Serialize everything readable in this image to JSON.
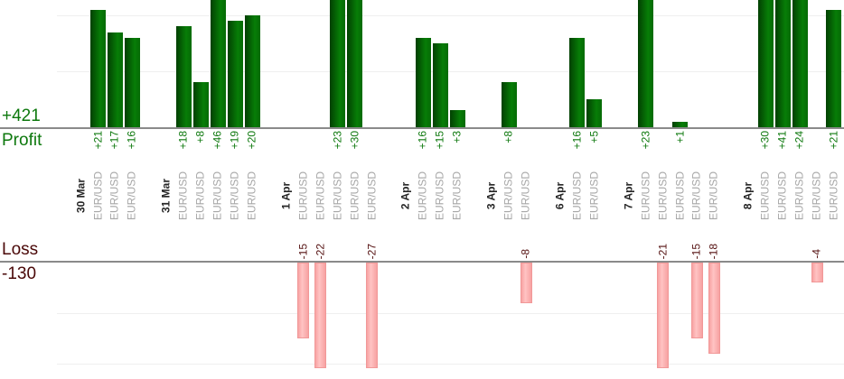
{
  "chart_data": {
    "type": "bar",
    "profit": {
      "title": "Profit",
      "total_label": "+421",
      "total": 421,
      "bar_color_dark": "#024002",
      "bar_color_light": "#077d07",
      "text_color": "#0d780d",
      "gridline_values": [
        10,
        20
      ]
    },
    "loss": {
      "title": "Loss",
      "total_label": "-130",
      "total": -130,
      "bar_color": "#ffc3c3",
      "bar_edge_color": "#f7a2a2",
      "bar_border_color": "#f19898",
      "text_color": "#541010",
      "gridline_values": [
        -10,
        -20
      ]
    },
    "x_axis": {
      "date_label_color": "#262626",
      "symbol_label_color": "#a6a6a6"
    },
    "groups": [
      {
        "date": "30 Mar",
        "trades": [
          {
            "symbol": "EUR/USD",
            "value": 21,
            "label": "+21"
          },
          {
            "symbol": "EUR/USD",
            "value": 17,
            "label": "+17"
          },
          {
            "symbol": "EUR/USD",
            "value": 16,
            "label": "+16"
          }
        ]
      },
      {
        "date": "31 Mar",
        "trades": [
          {
            "symbol": "EUR/USD",
            "value": 18,
            "label": "+18"
          },
          {
            "symbol": "EUR/USD",
            "value": 8,
            "label": "+8"
          },
          {
            "symbol": "EUR/USD",
            "value": 46,
            "label": "+46"
          },
          {
            "symbol": "EUR/USD",
            "value": 19,
            "label": "+19"
          },
          {
            "symbol": "EUR/USD",
            "value": 20,
            "label": "+20"
          }
        ]
      },
      {
        "date": "1 Apr",
        "trades": [
          {
            "symbol": "EUR/USD",
            "value": -15,
            "label": "-15"
          },
          {
            "symbol": "EUR/USD",
            "value": -22,
            "label": "-22"
          },
          {
            "symbol": "EUR/USD",
            "value": 23,
            "label": "+23"
          },
          {
            "symbol": "EUR/USD",
            "value": 30,
            "label": "+30"
          },
          {
            "symbol": "EUR/USD",
            "value": -27,
            "label": "-27"
          }
        ]
      },
      {
        "date": "2 Apr",
        "trades": [
          {
            "symbol": "EUR/USD",
            "value": 16,
            "label": "+16"
          },
          {
            "symbol": "EUR/USD",
            "value": 15,
            "label": "+15"
          },
          {
            "symbol": "EUR/USD",
            "value": 3,
            "label": "+3"
          }
        ]
      },
      {
        "date": "3 Apr",
        "trades": [
          {
            "symbol": "EUR/USD",
            "value": 8,
            "label": "+8"
          },
          {
            "symbol": "EUR/USD",
            "value": -8,
            "label": "-8"
          }
        ]
      },
      {
        "date": "6 Apr",
        "trades": [
          {
            "symbol": "EUR/USD",
            "value": 16,
            "label": "+16"
          },
          {
            "symbol": "EUR/USD",
            "value": 5,
            "label": "+5"
          }
        ]
      },
      {
        "date": "7 Apr",
        "trades": [
          {
            "symbol": "EUR/USD",
            "value": 23,
            "label": "+23"
          },
          {
            "symbol": "EUR/USD",
            "value": -21,
            "label": "-21"
          },
          {
            "symbol": "EUR/USD",
            "value": 1,
            "label": "+1"
          },
          {
            "symbol": "EUR/USD",
            "value": -15,
            "label": "-15"
          },
          {
            "symbol": "EUR/USD",
            "value": -18,
            "label": "-18"
          }
        ]
      },
      {
        "date": "8 Apr",
        "trades": [
          {
            "symbol": "EUR/USD",
            "value": 30,
            "label": "+30"
          },
          {
            "symbol": "EUR/USD",
            "value": 41,
            "label": "+41"
          },
          {
            "symbol": "EUR/USD",
            "value": 24,
            "label": "+24"
          },
          {
            "symbol": "EUR/USD",
            "value": -4,
            "label": "-4"
          },
          {
            "symbol": "EUR/USD",
            "value": 21,
            "label": "+21"
          }
        ]
      }
    ]
  }
}
